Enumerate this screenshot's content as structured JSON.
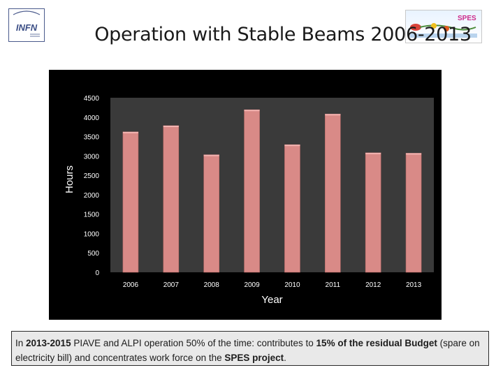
{
  "header": {
    "title": "Operation with Stable Beams 2006-2013",
    "infn_logo_text": "INFN",
    "spes_logo_text": "SPES"
  },
  "colors": {
    "chart_bg": "#000000",
    "plot_bg": "#3a3a3a",
    "bar": "#d98a87",
    "text": "#ffffff"
  },
  "chart_data": {
    "type": "bar",
    "categories": [
      "2006",
      "2007",
      "2008",
      "2009",
      "2010",
      "2011",
      "2012",
      "2013"
    ],
    "values": [
      3620,
      3780,
      3030,
      4190,
      3290,
      4080,
      3080,
      3070
    ],
    "title": "",
    "xlabel": "Year",
    "ylabel": "Hours",
    "ylim": [
      0,
      4500
    ],
    "yticks": [
      "0",
      "500",
      "1000",
      "1500",
      "2000",
      "2500",
      "3000",
      "3500",
      "4000",
      "4500"
    ],
    "grid": false,
    "legend": "none"
  },
  "caption": {
    "p1": "In ",
    "b1": "2013-2015",
    "p2": "  PIAVE and ALPI operation 50% of the time:  contributes to ",
    "b2": "15% of the residual Budget",
    "p3": " (spare on electricity bill) and concentrates work force on the ",
    "b3": "SPES project",
    "p4": "."
  }
}
